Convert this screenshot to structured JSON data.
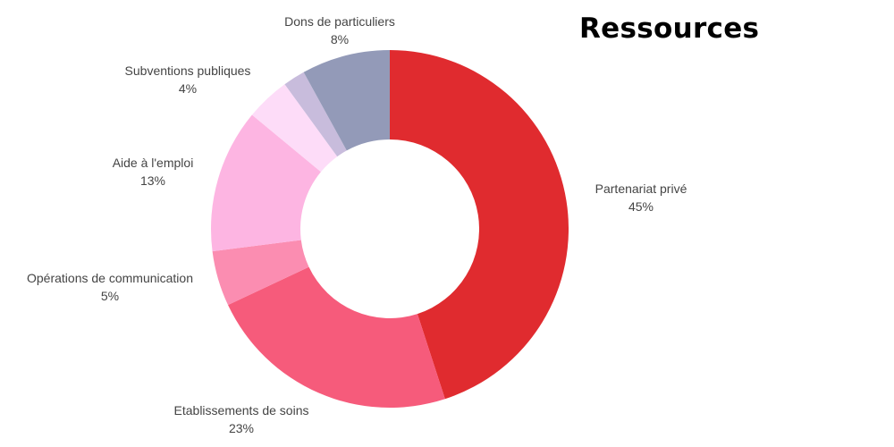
{
  "chart_data": {
    "type": "pie",
    "variant": "donut",
    "title": "Ressources",
    "slices": [
      {
        "label": "Partenariat privé",
        "value": 45,
        "pct_text": "45%",
        "color": "#E02B2F"
      },
      {
        "label": "Etablissements de soins",
        "value": 23,
        "pct_text": "23%",
        "color": "#F65B7B"
      },
      {
        "label": "Opérations de communication",
        "value": 5,
        "pct_text": "5%",
        "color": "#FB8DB1"
      },
      {
        "label": "Aide à l'emploi",
        "value": 13,
        "pct_text": "13%",
        "color": "#FDB5E2"
      },
      {
        "label": "Subventions publiques",
        "value": 4,
        "pct_text": "4%",
        "color": "#FDDCF8"
      },
      {
        "label": "",
        "value": 2,
        "pct_text": "",
        "color": "#C8BCDC"
      },
      {
        "label": "Dons de particuliers",
        "value": 8,
        "pct_text": "8%",
        "color": "#939AB8"
      }
    ]
  }
}
